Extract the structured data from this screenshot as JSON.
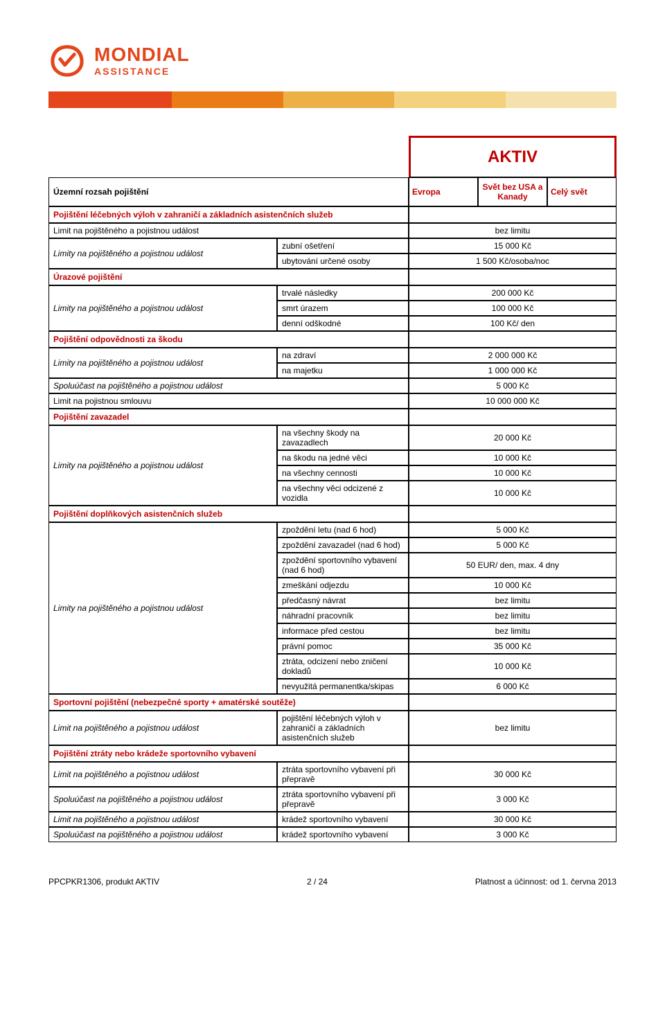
{
  "brand": {
    "name": "MONDIAL",
    "sub": "ASSISTANCE"
  },
  "title": "AKTIV",
  "scope_label": "Územní rozsah pojištění",
  "regions": [
    "Evropa",
    "Svět bez USA a Kanady",
    "Celý svět"
  ],
  "sections": [
    {
      "type": "section",
      "text": "Pojištění léčebných výloh v zahraničí a základních asistenčních služeb",
      "red": true
    },
    {
      "type": "full",
      "left": "Limit na pojištěného a pojistnou událost",
      "value": "bez limitu"
    },
    {
      "type": "group",
      "left": "Limity na pojištěného a pojistnou událost",
      "italic": true,
      "rows": [
        [
          "zubní ošetření",
          "15 000 Kč"
        ],
        [
          "ubytování určené osoby",
          "1 500 Kč/osoba/noc"
        ]
      ]
    },
    {
      "type": "section",
      "text": "Úrazové pojištění",
      "red": true
    },
    {
      "type": "group",
      "left": "Limity na pojištěného a pojistnou událost",
      "italic": true,
      "rows": [
        [
          "trvalé následky",
          "200 000 Kč"
        ],
        [
          "smrt úrazem",
          "100 000 Kč"
        ],
        [
          "denní odškodné",
          "100 Kč/ den"
        ]
      ]
    },
    {
      "type": "section",
      "text": "Pojištění odpovědnosti za škodu",
      "red": true
    },
    {
      "type": "group",
      "left": "Limity na pojištěného a pojistnou událost",
      "italic": true,
      "rows": [
        [
          "na zdraví",
          "2 000 000 Kč"
        ],
        [
          "na majetku",
          "1 000 000 Kč"
        ]
      ]
    },
    {
      "type": "full",
      "left": "Spoluúčast na pojištěného a pojistnou událost",
      "italic": true,
      "value": "5 000 Kč"
    },
    {
      "type": "full",
      "left": "Limit na pojistnou smlouvu",
      "value": "10 000 000 Kč"
    },
    {
      "type": "section",
      "text": "Pojištění zavazadel",
      "red": true
    },
    {
      "type": "group",
      "left": "Limity na pojištěného a pojistnou událost",
      "italic": true,
      "rows": [
        [
          "na všechny škody na zavazadlech",
          "20 000 Kč"
        ],
        [
          "na škodu na jedné věci",
          "10 000 Kč"
        ],
        [
          "na všechny cennosti",
          "10 000 Kč"
        ],
        [
          "na všechny věci odcizené z vozidla",
          "10 000 Kč"
        ]
      ]
    },
    {
      "type": "section",
      "text": "Pojištění doplňkových asistenčních služeb",
      "red": true
    },
    {
      "type": "group",
      "left": "Limity na pojištěného a pojistnou událost",
      "italic": true,
      "rows": [
        [
          "zpoždění letu (nad 6 hod)",
          "5 000 Kč"
        ],
        [
          "zpoždění zavazadel (nad 6 hod)",
          "5 000 Kč"
        ],
        [
          "zpoždění sportovního vybavení (nad 6 hod)",
          "50 EUR/ den, max. 4 dny"
        ],
        [
          "zmeškání odjezdu",
          "10 000 Kč"
        ],
        [
          "předčasný návrat",
          "bez limitu"
        ],
        [
          "náhradní pracovník",
          "bez limitu"
        ],
        [
          "informace před cestou",
          "bez limitu"
        ],
        [
          "právní pomoc",
          "35 000 Kč"
        ],
        [
          "ztráta, odcizení nebo zničení dokladů",
          "10 000 Kč"
        ],
        [
          "nevyužitá permanentka/skipas",
          "6 000 Kč"
        ]
      ]
    },
    {
      "type": "section",
      "text": "Sportovní pojištění (nebezpečné sporty + amatérské soutěže)",
      "red": true
    },
    {
      "type": "group",
      "left": "Limit na pojištěného a pojistnou událost",
      "italic": true,
      "rows": [
        [
          "pojištění léčebných výloh v zahraničí a základních asistenčních služeb",
          "bez limitu"
        ]
      ]
    },
    {
      "type": "section",
      "text": "Pojištění ztráty nebo krádeže sportovního vybavení",
      "red": true
    },
    {
      "type": "group",
      "left": "Limit na pojištěného a pojistnou událost",
      "italic": true,
      "rows": [
        [
          "ztráta sportovního vybavení při přepravě",
          "30 000 Kč"
        ]
      ]
    },
    {
      "type": "group",
      "left": "Spoluúčast na pojištěného a pojistnou událost",
      "italic": true,
      "rows": [
        [
          "ztráta sportovního vybavení při přepravě",
          "3 000 Kč"
        ]
      ]
    },
    {
      "type": "group",
      "left": "Limit na pojištěného a pojistnou událost",
      "italic": true,
      "rows": [
        [
          "krádež sportovního vybavení",
          "30 000 Kč"
        ]
      ]
    },
    {
      "type": "group",
      "left": "Spoluúčast na pojištěného a pojistnou událost",
      "italic": true,
      "rows": [
        [
          "krádež sportovního vybavení",
          "3 000 Kč"
        ]
      ]
    }
  ],
  "footer": {
    "left": "PPCPKR1306, produkt AKTIV",
    "center": "2 / 24",
    "right": "Platnost a účinnost: od 1. června 2013"
  }
}
